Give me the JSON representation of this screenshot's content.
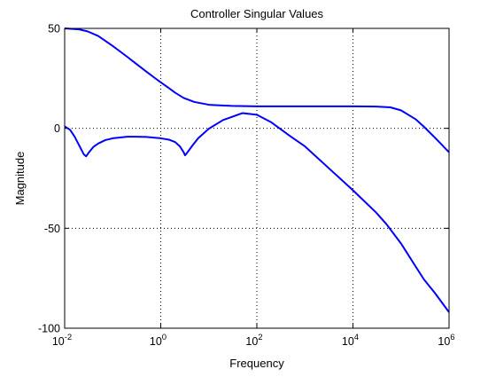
{
  "chart_data": {
    "type": "line",
    "title": "Controller Singular Values",
    "xlabel": "Frequency",
    "ylabel": "Magnitude",
    "xscale": "log",
    "xlim": [
      0.01,
      1000000
    ],
    "ylim": [
      -100,
      50
    ],
    "grid": true,
    "line_color": "#0000ff",
    "x_ticks": [
      {
        "value": 0.01,
        "base": "10",
        "exp": "-2"
      },
      {
        "value": 1,
        "base": "10",
        "exp": "0"
      },
      {
        "value": 100,
        "base": "10",
        "exp": "2"
      },
      {
        "value": 10000,
        "base": "10",
        "exp": "4"
      },
      {
        "value": 1000000,
        "base": "10",
        "exp": "6"
      }
    ],
    "y_ticks": [
      {
        "value": 50,
        "label": "50"
      },
      {
        "value": 0,
        "label": "0"
      },
      {
        "value": -50,
        "label": "-50"
      },
      {
        "value": -100,
        "label": "-100"
      }
    ],
    "series": [
      {
        "x": [
          0.01,
          0.02,
          0.03,
          0.05,
          0.1,
          0.2,
          0.3,
          0.5,
          0.8,
          1,
          1.5,
          2,
          3,
          5,
          10,
          30,
          100,
          1000,
          10000,
          30000,
          60000,
          100000,
          200000,
          300000,
          500000,
          700000,
          1000000
        ],
        "y": [
          50,
          49.5,
          48.5,
          46.2,
          41.2,
          35.8,
          32.5,
          28.4,
          24.7,
          23,
          20,
          17.8,
          15.2,
          13.2,
          11.8,
          11.2,
          11,
          11,
          11,
          10.9,
          10.5,
          9,
          4.6,
          0.8,
          -4.5,
          -8.1,
          -12
        ]
      },
      {
        "x": [
          0.01,
          0.013,
          0.016,
          0.02,
          0.025,
          0.028,
          0.032,
          0.04,
          0.05,
          0.07,
          0.1,
          0.2,
          0.3,
          0.5,
          1,
          1.5,
          2,
          2.5,
          3,
          3.2,
          3.6,
          4.5,
          6,
          10,
          20,
          50,
          100,
          200,
          500,
          1000,
          10000,
          30000,
          50000,
          100000,
          200000,
          300000,
          500000,
          1000000
        ],
        "y": [
          1,
          -0.8,
          -4,
          -8.5,
          -13,
          -14,
          -12,
          -9.2,
          -7.6,
          -5.9,
          -5,
          -4.2,
          -4.2,
          -4.3,
          -5,
          -5.7,
          -6.9,
          -9,
          -12,
          -13.5,
          -12,
          -8.8,
          -5,
          -0.2,
          4.2,
          7.6,
          6.8,
          3,
          -4,
          -9,
          -31,
          -42,
          -48,
          -57.6,
          -69,
          -75.6,
          -82.2,
          -92
        ]
      }
    ]
  }
}
